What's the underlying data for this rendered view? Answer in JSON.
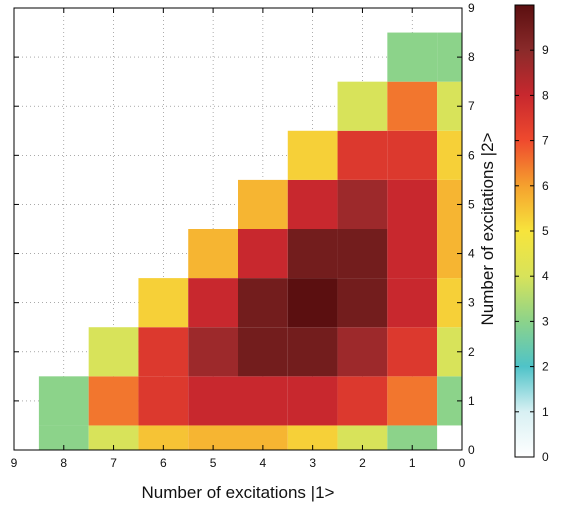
{
  "chart_data": {
    "type": "heatmap",
    "xlabel": "Number of excitations |1>",
    "ylabel": "Number of excitations |2>",
    "x_ticks": [
      "9",
      "8",
      "7",
      "6",
      "5",
      "4",
      "3",
      "2",
      "1",
      "0"
    ],
    "y_ticks": [
      "0",
      "1",
      "2",
      "3",
      "4",
      "5",
      "6",
      "7",
      "8",
      "9"
    ],
    "xlim": [
      9,
      0
    ],
    "ylim": [
      0,
      9
    ],
    "x_categories": [
      8,
      7,
      6,
      5,
      4,
      3,
      2,
      1,
      0
    ],
    "y_categories": [
      0,
      1,
      2,
      3,
      4,
      5,
      6,
      7,
      8
    ],
    "values": [
      [
        3.0,
        4.0,
        5.5,
        5.7,
        5.7,
        5.3,
        4.0,
        3.0,
        null
      ],
      [
        3.0,
        6.5,
        7.5,
        8.0,
        8.0,
        8.0,
        7.5,
        6.5,
        3.0
      ],
      [
        null,
        4.0,
        7.5,
        8.7,
        9.5,
        9.5,
        8.7,
        7.5,
        4.0
      ],
      [
        null,
        null,
        5.3,
        8.0,
        9.5,
        10.0,
        9.5,
        8.0,
        5.3
      ],
      [
        null,
        null,
        null,
        5.7,
        8.0,
        9.5,
        9.5,
        8.0,
        5.7
      ],
      [
        null,
        null,
        null,
        null,
        5.7,
        8.0,
        8.7,
        8.0,
        5.7
      ],
      [
        null,
        null,
        null,
        null,
        null,
        5.3,
        7.5,
        7.5,
        5.3
      ],
      [
        null,
        null,
        null,
        null,
        null,
        null,
        4.0,
        6.5,
        4.0
      ],
      [
        null,
        null,
        null,
        null,
        null,
        null,
        null,
        3.0,
        3.0
      ]
    ],
    "grid": true,
    "colorbar": {
      "ticks": [
        "0",
        "1",
        "2",
        "3",
        "4",
        "5",
        "6",
        "7",
        "8",
        "9"
      ],
      "min": 0,
      "max": 10,
      "colors": [
        "#ffffff",
        "#d8f0f3",
        "#4fc3c8",
        "#8cd38a",
        "#d8e35a",
        "#f7e43c",
        "#f5a12e",
        "#ef4a2e",
        "#c8282e",
        "#8a2a2a",
        "#5b0f10"
      ]
    }
  }
}
